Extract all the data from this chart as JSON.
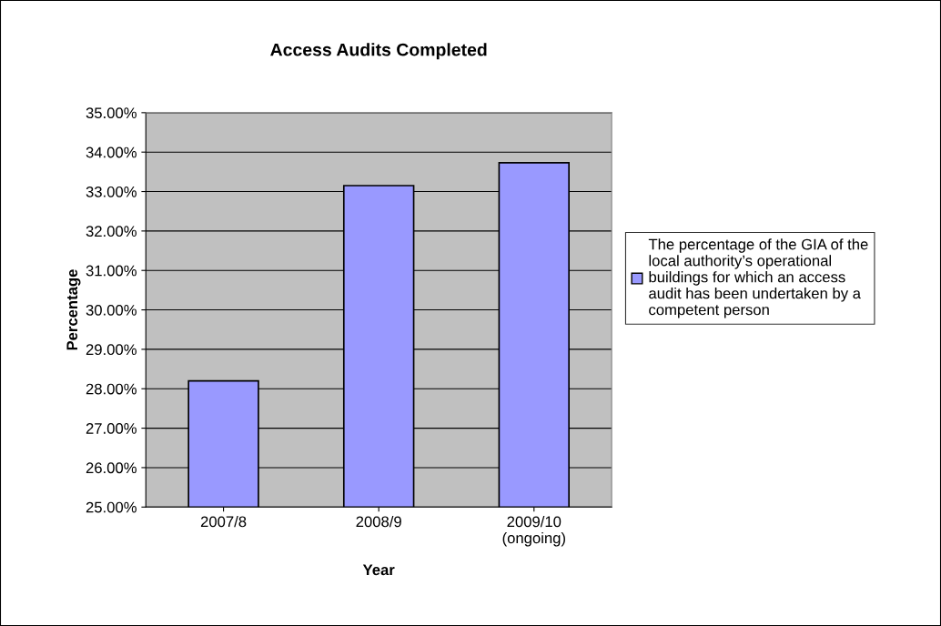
{
  "chart_data": {
    "type": "bar",
    "title": "Access Audits Completed",
    "xlabel": "Year",
    "ylabel": "Percentage",
    "categories": [
      "2007/8",
      "2008/9",
      "2009/10\n(ongoing)"
    ],
    "series": [
      {
        "name": "The percentage of the GIA of the local authority’s operational buildings for which an access audit has been undertaken by a competent person",
        "color": "#9999ff",
        "values": [
          28.2,
          33.15,
          33.73
        ]
      }
    ],
    "ylim": [
      25,
      35
    ],
    "yticks": [
      {
        "value": 25,
        "label": "25.00%"
      },
      {
        "value": 26,
        "label": "26.00%"
      },
      {
        "value": 27,
        "label": "27.00%"
      },
      {
        "value": 28,
        "label": "28.00%"
      },
      {
        "value": 29,
        "label": "29.00%"
      },
      {
        "value": 30,
        "label": "30.00%"
      },
      {
        "value": 31,
        "label": "31.00%"
      },
      {
        "value": 32,
        "label": "32.00%"
      },
      {
        "value": 33,
        "label": "33.00%"
      },
      {
        "value": 34,
        "label": "34.00%"
      },
      {
        "value": 35,
        "label": "35.00%"
      }
    ],
    "grid": "y",
    "legend": "right"
  }
}
